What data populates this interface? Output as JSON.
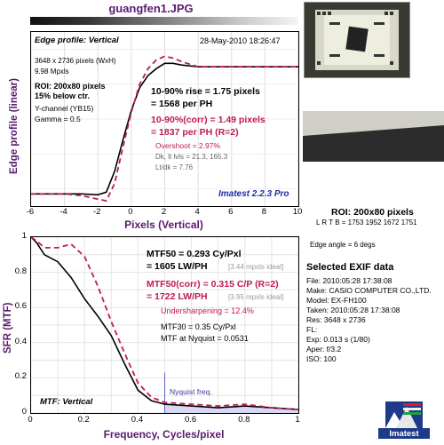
{
  "title": "guangfen1.JPG",
  "edge_profile": {
    "heading": "Edge profile: Vertical",
    "date": "28-May-2010 18:26:47",
    "dims": "3648 x 2736 pixels (WxH)",
    "mpxls": "9.98 Mpxls",
    "roi1": "ROI: 200x80 pixels",
    "roi2": "15% below ctr.",
    "channel": "Y-channel (YB15)",
    "gamma": "Gamma = 0.5",
    "rise1": "10-90% rise = 1.75 pixels",
    "rise2": "= 1568 per PH",
    "corr1": "10-90%(corr) = 1.49 pixels",
    "corr2": "= 1837 per PH  (R=2)",
    "overshoot": "Overshoot = 2.97%",
    "dk": "Dk, lt lvls = 21.3, 165.3",
    "ltdk": "Lt/dk = 7.76",
    "brand": "Imatest 2.2.3 Pro",
    "xlabel": "Pixels (Vertical)",
    "ylabel": "Edge profile (linear)",
    "xticks": [
      "-6",
      "-4",
      "-2",
      "0",
      "2",
      "4",
      "6",
      "8",
      "10"
    ]
  },
  "mtf": {
    "heading": "MTF: Vertical",
    "mtf50": "MTF50 = 0.293 Cy/Pxl",
    "mtf50b": "= 1605 LW/PH",
    "mtf50_ideal": "[3.44 mpxls ideal]",
    "mtf50c": "MTF50(corr) = 0.315 C/P  (R=2)",
    "mtf50cb": "= 1722 LW/PH",
    "mtf50c_ideal": "[3.95 mpxls ideal]",
    "under": "Undersharpening = 12.4%",
    "mtf30": "MTF30 = 0.35 Cy/Pxl",
    "nyq": "MTF at Nyquist = 0.0531",
    "nyq_label": "Nyquist freq.",
    "xlabel": "Frequency, Cycles/pixel",
    "ylabel": "SFR (MTF)",
    "xticks": [
      "0",
      "0.2",
      "0.4",
      "0.6",
      "0.8",
      "1"
    ],
    "yticks": [
      "1",
      "0.8",
      "0.6",
      "0.4",
      "0.2",
      "0"
    ]
  },
  "side": {
    "roi": "ROI: 200x80 pixels",
    "lrtb": "L R T B = 1753 1952  1672 1751",
    "edge_angle": "Edge angle = 6 degs",
    "exif_title": "Selected EXIF data",
    "exif": [
      "File:  2010:05:28 17:38:08",
      "Make:  CASIO COMPUTER CO.,LTD.",
      "Model:  EX-FH100",
      "Taken:  2010:05:28 17:38:08",
      "Res:   3648 x 2736",
      "FL:",
      "Exp:   0.013 s  (1/80)",
      "Aper:  f/3.2",
      "ISO:   100"
    ],
    "logo_text": "Imatest"
  },
  "colors": {
    "title": "#5a1a6e",
    "accent": "#c0185a"
  },
  "chart_data": [
    {
      "type": "line",
      "title": "Edge profile: Vertical",
      "xlabel": "Pixels (Vertical)",
      "ylabel": "Edge profile (linear)",
      "xlim": [
        -6,
        10
      ],
      "series": [
        {
          "x": [
            -6,
            -4,
            -3,
            -2,
            -1.5,
            -1,
            -0.5,
            0,
            0.5,
            1,
            1.5,
            2,
            2.5,
            3,
            4,
            5,
            6,
            8,
            10
          ],
          "y": [
            0.07,
            0.07,
            0.07,
            0.065,
            0.08,
            0.2,
            0.38,
            0.55,
            0.68,
            0.75,
            0.79,
            0.82,
            0.82,
            0.81,
            0.8,
            0.8,
            0.8,
            0.8,
            0.8
          ]
        },
        {
          "x": [
            -6,
            -4,
            -3,
            -2,
            -1.5,
            -1,
            -0.5,
            0,
            0.5,
            1,
            1.5,
            2,
            2.5,
            3,
            4,
            5,
            6,
            8,
            10
          ],
          "y": [
            0.07,
            0.07,
            0.06,
            0.04,
            0.03,
            0.13,
            0.34,
            0.54,
            0.7,
            0.79,
            0.84,
            0.86,
            0.85,
            0.83,
            0.8,
            0.8,
            0.8,
            0.8,
            0.8
          ]
        }
      ]
    },
    {
      "type": "line",
      "title": "MTF: Vertical",
      "xlabel": "Frequency, Cycles/pixel",
      "ylabel": "SFR (MTF)",
      "xlim": [
        0,
        1
      ],
      "ylim": [
        0,
        1
      ],
      "series": [
        {
          "x": [
            0,
            0.02,
            0.05,
            0.1,
            0.15,
            0.2,
            0.25,
            0.3,
            0.35,
            0.4,
            0.45,
            0.5,
            0.6,
            0.7,
            0.8,
            0.9,
            1.0
          ],
          "y": [
            1.0,
            0.97,
            0.9,
            0.86,
            0.77,
            0.65,
            0.55,
            0.44,
            0.28,
            0.13,
            0.07,
            0.05,
            0.04,
            0.03,
            0.04,
            0.03,
            0.02
          ]
        },
        {
          "x": [
            0,
            0.02,
            0.05,
            0.1,
            0.15,
            0.2,
            0.25,
            0.3,
            0.35,
            0.4,
            0.45,
            0.5,
            0.6,
            0.7,
            0.8,
            0.9,
            1.0
          ],
          "y": [
            1.0,
            0.98,
            0.94,
            0.94,
            0.96,
            0.89,
            0.72,
            0.52,
            0.34,
            0.17,
            0.09,
            0.06,
            0.05,
            0.04,
            0.05,
            0.03,
            0.02
          ]
        }
      ]
    }
  ]
}
